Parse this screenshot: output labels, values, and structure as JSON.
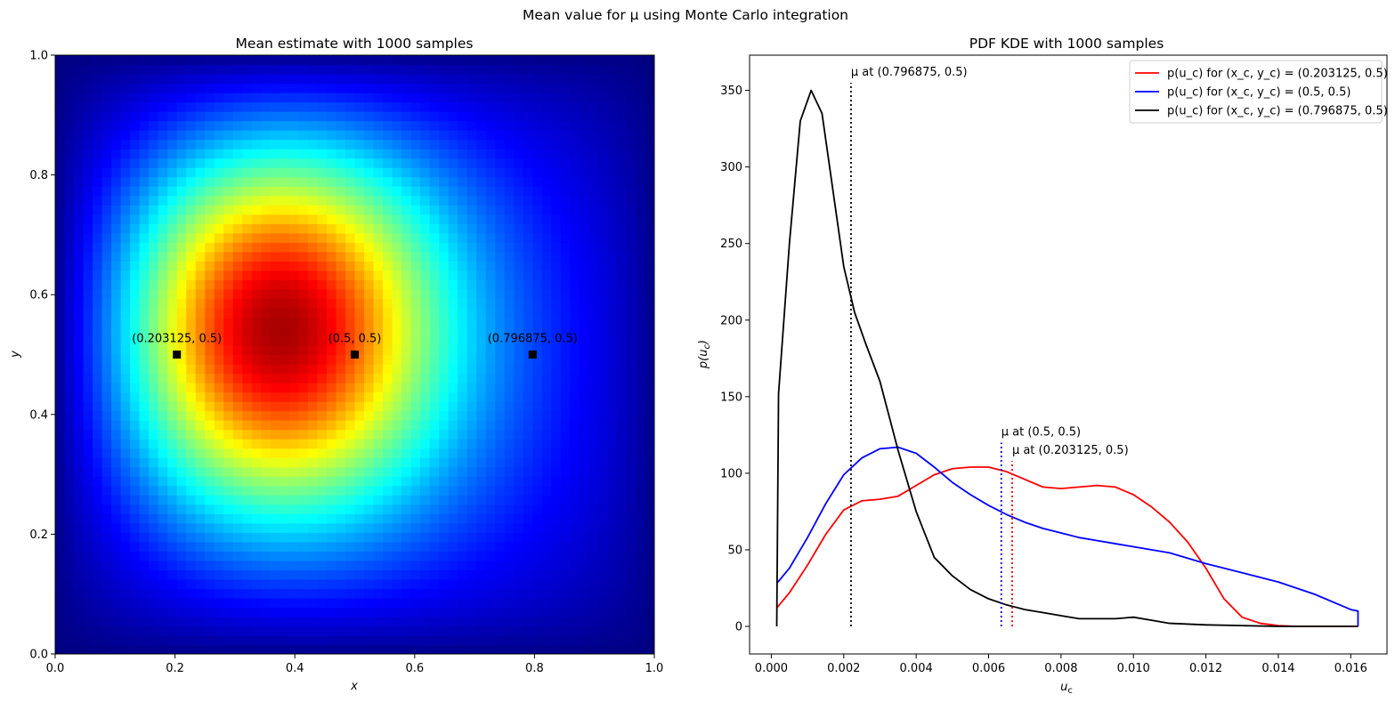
{
  "suptitle": "Mean value for μ using Monte Carlo integration",
  "chart_data": [
    {
      "type": "heatmap",
      "title": "Mean estimate with 1000 samples",
      "xlabel": "x",
      "ylabel": "y",
      "xlim": [
        0,
        1
      ],
      "ylim": [
        0,
        1
      ],
      "xticks": [
        "0.0",
        "0.2",
        "0.4",
        "0.6",
        "0.8",
        "1.0"
      ],
      "yticks": [
        "0.0",
        "0.2",
        "0.4",
        "0.6",
        "0.8",
        "1.0"
      ],
      "colormap": "jet",
      "peak": {
        "x": 0.34,
        "y": 0.56
      },
      "points": [
        {
          "label": "(0.203125, 0.5)",
          "x": 0.203125,
          "y": 0.5
        },
        {
          "label": "(0.5, 0.5)",
          "x": 0.5,
          "y": 0.5
        },
        {
          "label": "(0.796875, 0.5)",
          "x": 0.796875,
          "y": 0.5
        }
      ]
    },
    {
      "type": "line",
      "title": "PDF KDE with 1000 samples",
      "xlabel": "u_c",
      "ylabel": "p(u_c)",
      "xlim": [
        -0.0006,
        0.017
      ],
      "ylim": [
        -18,
        373
      ],
      "xticks": [
        "0.000",
        "0.002",
        "0.004",
        "0.006",
        "0.008",
        "0.010",
        "0.012",
        "0.014",
        "0.016"
      ],
      "yticks": [
        "0",
        "50",
        "100",
        "150",
        "200",
        "250",
        "300",
        "350"
      ],
      "legend_position": "top-right",
      "series": [
        {
          "name": "p(u_c) for (x_c, y_c) = (0.203125, 0.5)",
          "color": "#ff0000",
          "x": [
            0.00015,
            0.0005,
            0.001,
            0.0015,
            0.002,
            0.0025,
            0.003,
            0.0035,
            0.004,
            0.0045,
            0.005,
            0.0055,
            0.006,
            0.0065,
            0.007,
            0.0075,
            0.008,
            0.0085,
            0.009,
            0.0095,
            0.01,
            0.0105,
            0.011,
            0.0115,
            0.012,
            0.0125,
            0.013,
            0.0135,
            0.014,
            0.0145,
            0.015,
            0.016,
            0.0162
          ],
          "y": [
            12,
            22,
            40,
            60,
            76,
            82,
            83,
            85,
            92,
            99,
            103,
            104,
            104,
            101,
            96,
            91,
            90,
            91,
            92,
            91,
            86,
            78,
            68,
            55,
            38,
            18,
            6,
            2,
            0.5,
            0,
            0,
            0,
            0
          ]
        },
        {
          "name": "p(u_c) for (x_c, y_c) = (0.5, 0.5)",
          "color": "#0000ff",
          "x": [
            0.00015,
            0.0005,
            0.001,
            0.0015,
            0.002,
            0.0025,
            0.003,
            0.0035,
            0.004,
            0.0045,
            0.005,
            0.0055,
            0.006,
            0.0065,
            0.007,
            0.0075,
            0.008,
            0.0085,
            0.009,
            0.0095,
            0.01,
            0.011,
            0.012,
            0.013,
            0.014,
            0.015,
            0.016,
            0.0162,
            0.0162
          ],
          "y": [
            28,
            38,
            58,
            80,
            99,
            110,
            116,
            117,
            113,
            104,
            94,
            86,
            79,
            73,
            68,
            64,
            61,
            58,
            56,
            54,
            52,
            48,
            41,
            35,
            29,
            21,
            11,
            10,
            0
          ]
        },
        {
          "name": "p(u_c) for (x_c, y_c) = (0.796875, 0.5)",
          "color": "#000000",
          "x": [
            0.00015,
            0.0002,
            0.0005,
            0.0008,
            0.0011,
            0.0014,
            0.0017,
            0.002,
            0.0023,
            0.0026,
            0.003,
            0.0035,
            0.004,
            0.0045,
            0.005,
            0.0055,
            0.006,
            0.0065,
            0.007,
            0.0075,
            0.008,
            0.0085,
            0.009,
            0.0095,
            0.01,
            0.0105,
            0.011,
            0.012,
            0.013,
            0.014,
            0.015,
            0.016,
            0.0162
          ],
          "y": [
            0,
            152,
            250,
            330,
            350,
            335,
            285,
            235,
            205,
            185,
            160,
            115,
            75,
            45,
            33,
            24,
            18,
            14,
            11,
            9,
            7,
            5,
            5,
            5,
            6,
            4,
            2,
            1,
            0.5,
            0,
            0,
            0,
            0
          ]
        }
      ],
      "mean_markers": [
        {
          "label": "μ at (0.796875, 0.5)",
          "x": 0.0022,
          "top": 355,
          "color": "#000000"
        },
        {
          "label": "μ at (0.5, 0.5)",
          "x": 0.00635,
          "top": 120,
          "color": "#0000ff"
        },
        {
          "label": "μ at (0.203125, 0.5)",
          "x": 0.00665,
          "top": 108,
          "color": "#ff0000"
        }
      ]
    }
  ]
}
